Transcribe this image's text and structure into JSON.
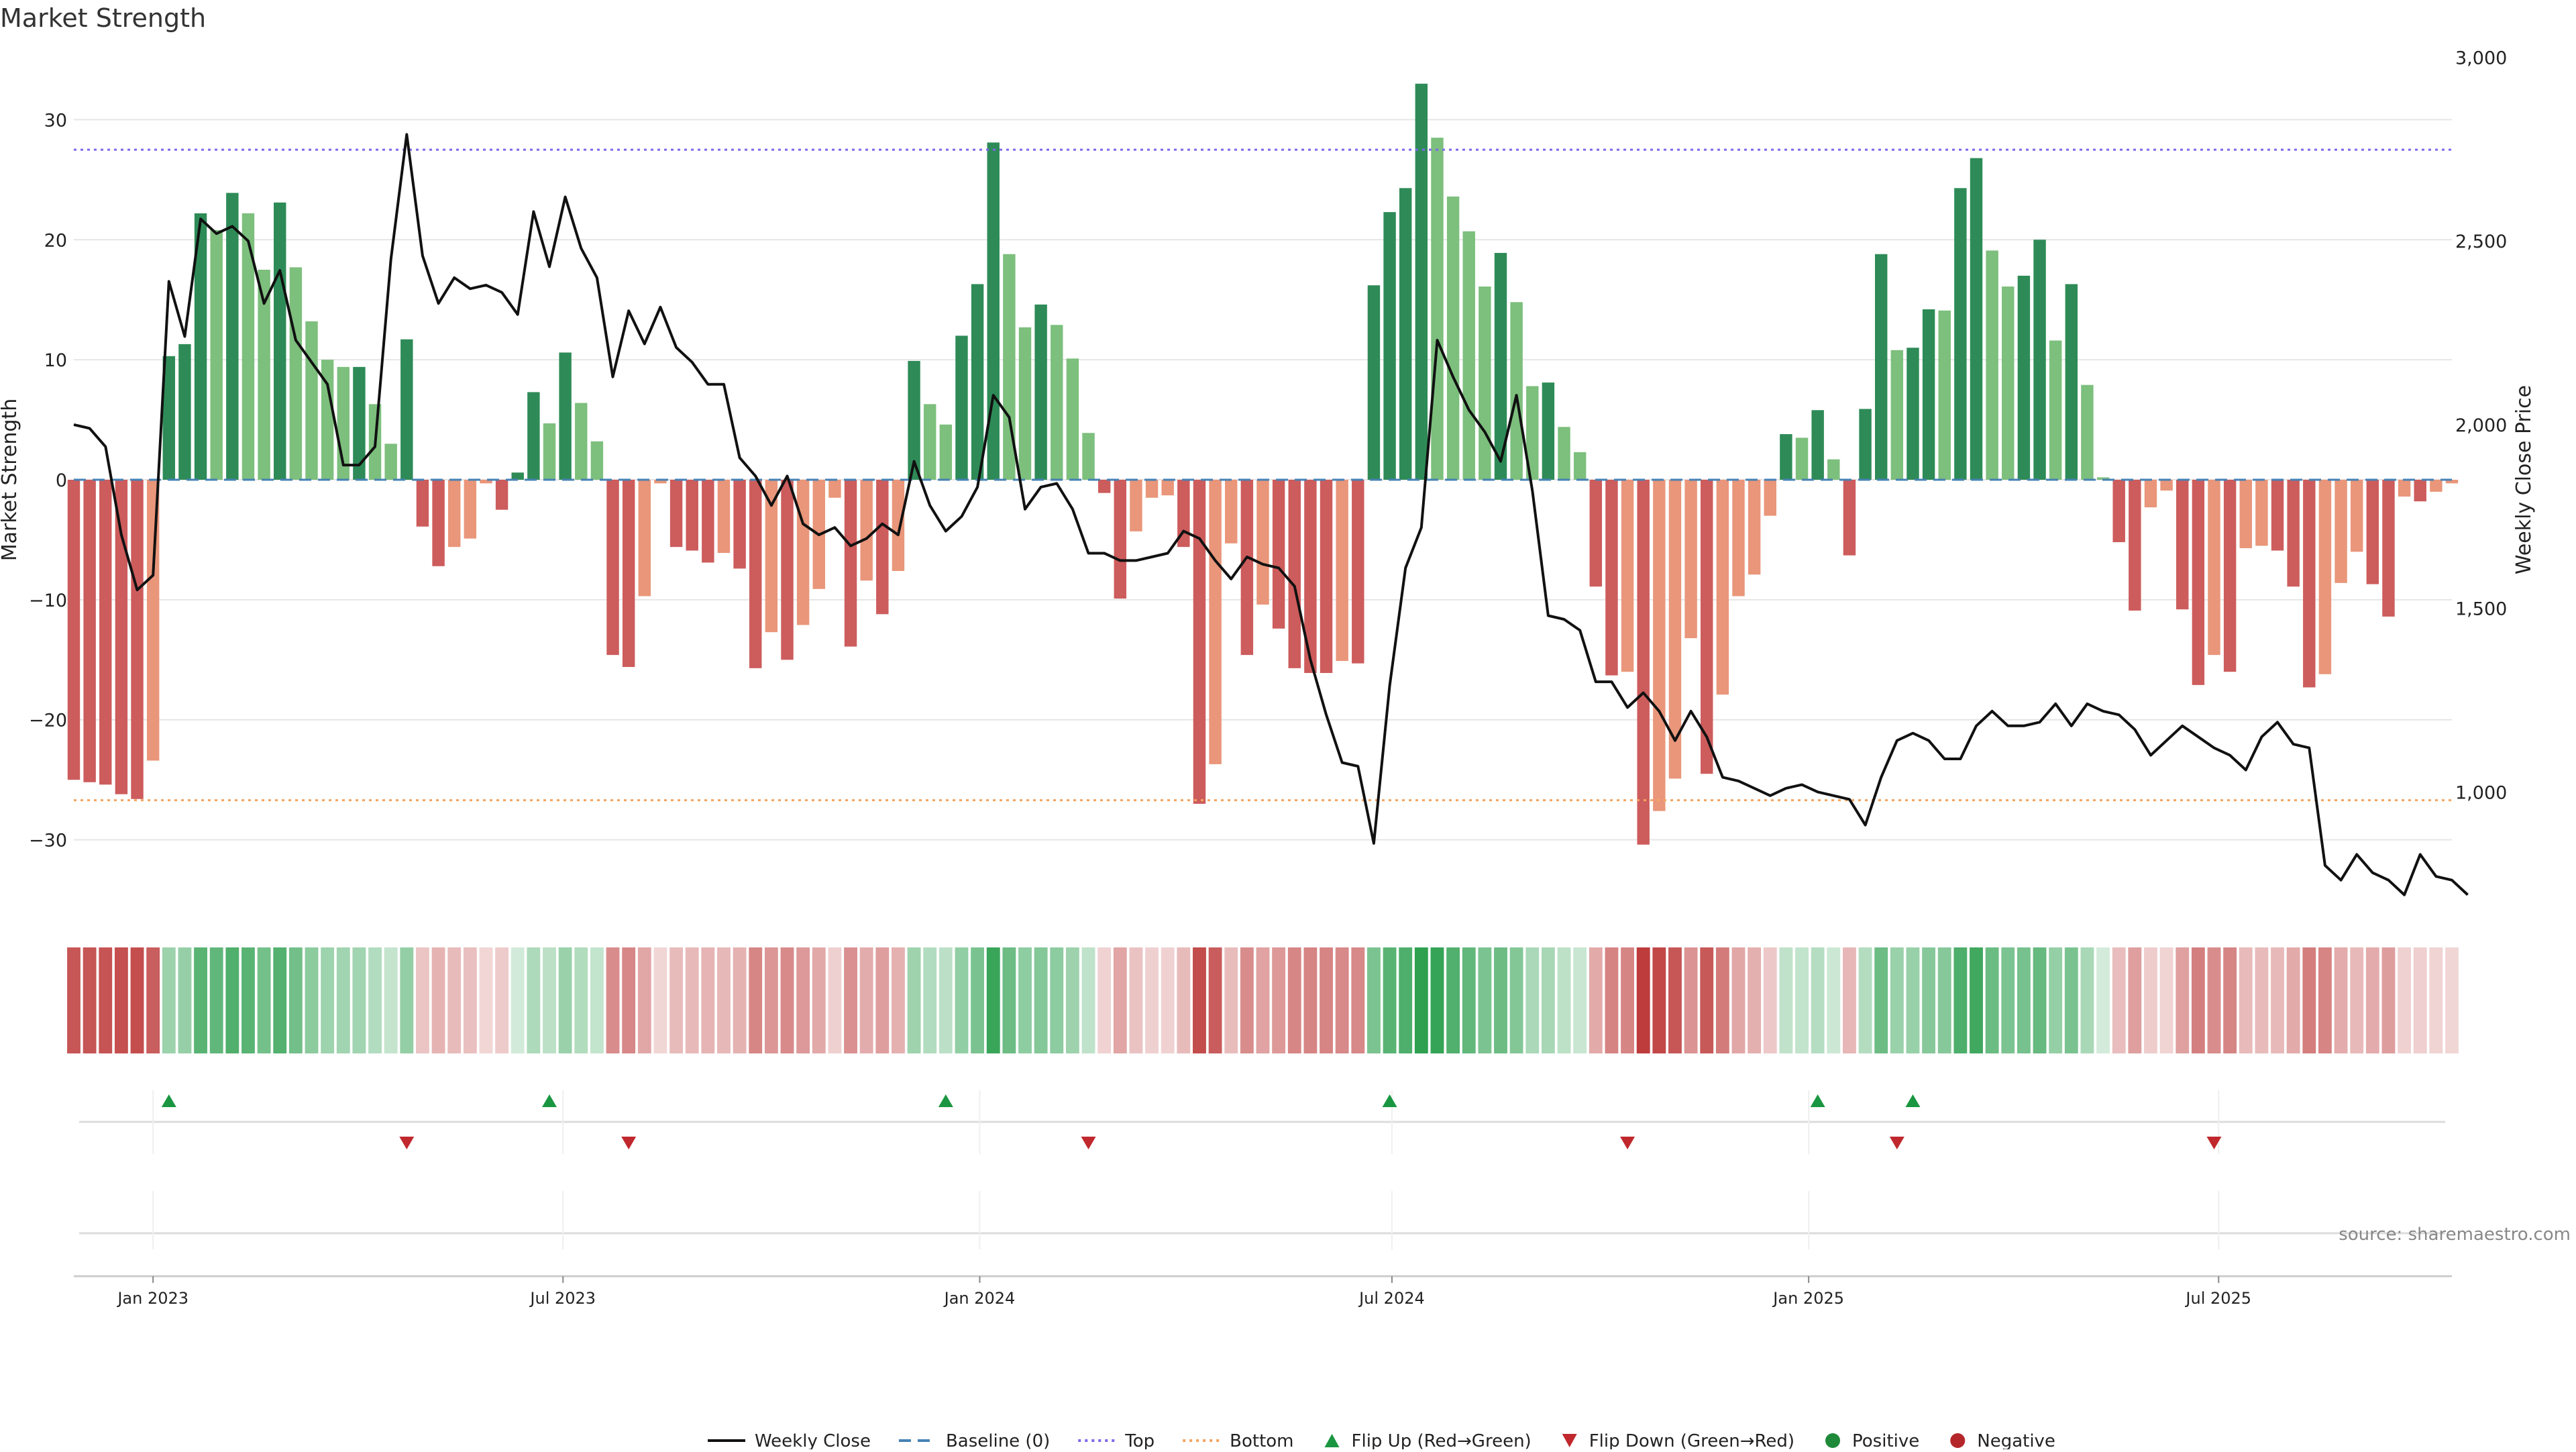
{
  "title": "Market Strength",
  "source_label": "source: sharemaestro.com",
  "colors": {
    "pos_dark": "#2e8b57",
    "pos_light": "#7dbf7d",
    "neg_dark": "#cd5c5c",
    "neg_light": "#e9967a",
    "line": "#111111",
    "baseline": "#4682b4",
    "top": "#7b68ee",
    "bottom": "#f4a460",
    "flip_up": "#1a9641",
    "flip_down": "#c0282d",
    "grid": "#e6e6e6"
  },
  "chart_data": {
    "type": "bar",
    "title": "Market Strength",
    "ylabel": "Market Strength",
    "y2label": "Weekly Close Price",
    "ylim": [
      -35.5,
      35.5
    ],
    "y2lim": [
      690,
      3010
    ],
    "yticks": [
      -30,
      -20,
      -10,
      0,
      10,
      20,
      30
    ],
    "y2ticks": [
      1000,
      1500,
      2000,
      2500,
      3000
    ],
    "y2tick_labels": [
      "1,000",
      "1,500",
      "2,000",
      "2,500",
      "3,000"
    ],
    "x_start": "2022-11-27",
    "x_end": "2025-10-12",
    "xticks": [
      "2023-01-01",
      "2023-07-01",
      "2024-01-01",
      "2024-07-01",
      "2025-01-01",
      "2025-07-01"
    ],
    "xtick_labels": [
      "Jan 2023",
      "Jul 2023",
      "Jan 2024",
      "Jul 2024",
      "Jan 2025",
      "Jul 2025"
    ],
    "top_level": 27.5,
    "bottom_level": -26.7,
    "baseline": 0,
    "first_week": "2022-11-27",
    "strength": [
      -25,
      -25.2,
      -25.4,
      -26.2,
      -26.6,
      -23.4,
      10.3,
      11.3,
      22.2,
      20.8,
      23.9,
      22.2,
      17.5,
      23.1,
      17.7,
      13.2,
      10.0,
      9.4,
      9.4,
      6.3,
      3.0,
      11.7,
      -3.9,
      -7.2,
      -5.6,
      -4.9,
      -0.3,
      -2.5,
      0.6,
      7.3,
      4.7,
      10.6,
      6.4,
      3.2,
      -14.6,
      -15.6,
      -9.7,
      -0.3,
      -5.6,
      -5.9,
      -6.9,
      -6.1,
      -7.4,
      -15.7,
      -12.7,
      -15.0,
      -12.1,
      -9.1,
      -1.5,
      -13.9,
      -8.4,
      -11.2,
      -7.6,
      9.9,
      6.3,
      4.6,
      12.0,
      16.3,
      28.1,
      18.8,
      12.7,
      14.6,
      12.9,
      10.1,
      3.9,
      -1.1,
      -9.9,
      -4.3,
      -1.5,
      -1.3,
      -5.6,
      -27.0,
      -23.7,
      -5.3,
      -14.6,
      -10.4,
      -12.4,
      -15.7,
      -16.1,
      -16.1,
      -15.1,
      -15.3,
      16.2,
      22.3,
      24.3,
      33.0,
      28.5,
      23.6,
      20.7,
      16.1,
      18.9,
      14.8,
      7.8,
      8.1,
      4.4,
      2.3,
      -8.9,
      -16.3,
      -16.0,
      -30.4,
      -27.6,
      -24.9,
      -13.2,
      -24.5,
      -17.9,
      -9.7,
      -7.9,
      -3.0,
      3.8,
      3.5,
      5.8,
      1.7,
      -6.3,
      5.9,
      18.8,
      10.8,
      11.0,
      14.2,
      14.1,
      24.3,
      26.8,
      19.1,
      16.1,
      17.0,
      20.0,
      11.6,
      16.3,
      7.9,
      0.2,
      -5.2,
      -10.9,
      -2.3,
      -0.9,
      -10.8,
      -17.1,
      -14.6,
      -16.0,
      -5.7,
      -5.5,
      -5.9,
      -8.9,
      -17.3,
      -16.2,
      -8.6,
      -6.0,
      -8.7,
      -11.4,
      -1.4,
      -1.8,
      -1.0,
      -0.3
    ],
    "close": [
      2000,
      1990,
      1940,
      1700,
      1550,
      1590,
      2390,
      2240,
      2560,
      2520,
      2540,
      2500,
      2330,
      2420,
      2230,
      2170,
      2110,
      1890,
      1890,
      1940,
      2450,
      2790,
      2460,
      2330,
      2400,
      2370,
      2380,
      2360,
      2300,
      2580,
      2430,
      2620,
      2480,
      2400,
      2130,
      2310,
      2220,
      2320,
      2210,
      2170,
      2110,
      2110,
      1910,
      1860,
      1780,
      1860,
      1730,
      1700,
      1720,
      1670,
      1690,
      1730,
      1700,
      1900,
      1780,
      1710,
      1750,
      1830,
      2080,
      2020,
      1770,
      1830,
      1840,
      1770,
      1650,
      1650,
      1630,
      1630,
      1640,
      1650,
      1710,
      1690,
      1630,
      1580,
      1640,
      1620,
      1610,
      1560,
      1360,
      1210,
      1080,
      1070,
      860,
      1290,
      1610,
      1720,
      2230,
      2130,
      2040,
      1980,
      1900,
      2080,
      1820,
      1480,
      1470,
      1440,
      1300,
      1300,
      1230,
      1270,
      1220,
      1140,
      1220,
      1150,
      1040,
      1030,
      1010,
      990,
      1010,
      1020,
      1000,
      990,
      980,
      910,
      1040,
      1140,
      1160,
      1140,
      1090,
      1090,
      1180,
      1220,
      1180,
      1180,
      1190,
      1240,
      1180,
      1240,
      1220,
      1210,
      1170,
      1100,
      1140,
      1180,
      1150,
      1120,
      1100,
      1060,
      1150,
      1190,
      1130,
      1120,
      800,
      760,
      830,
      780,
      760,
      720,
      830,
      770,
      760,
      720
    ]
  },
  "strip": {
    "label": "strength-heat-strip"
  },
  "signals": {
    "flip_up_dates": [
      "2023-01-08",
      "2023-06-25",
      "2023-12-17",
      "2024-06-30",
      "2025-01-05",
      "2025-02-16"
    ],
    "flip_down_dates": [
      "2023-04-23",
      "2023-07-30",
      "2024-02-18",
      "2024-10-13",
      "2025-02-09",
      "2025-06-29"
    ]
  },
  "legend": [
    {
      "label": "Weekly Close",
      "kind": "line"
    },
    {
      "label": "Baseline (0)",
      "kind": "dash"
    },
    {
      "label": "Top",
      "kind": "dot-top"
    },
    {
      "label": "Bottom",
      "kind": "dot-bottom"
    },
    {
      "label": "Flip Up (Red→Green)",
      "kind": "tri-up"
    },
    {
      "label": "Flip Down (Green→Red)",
      "kind": "tri-down"
    },
    {
      "label": "Positive",
      "kind": "circle-pos"
    },
    {
      "label": "Negative",
      "kind": "circle-neg"
    }
  ]
}
